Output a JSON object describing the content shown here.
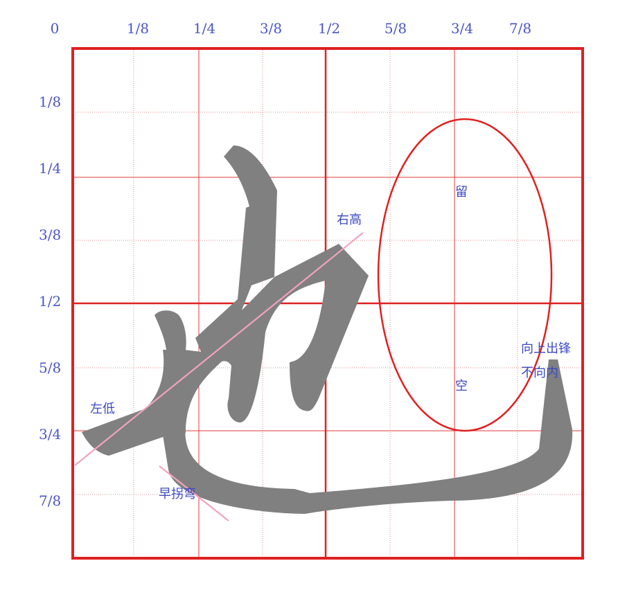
{
  "grid": {
    "top_labels": [
      "0",
      "1/8",
      "1/4",
      "3/8",
      "1/2",
      "5/8",
      "3/4",
      "7/8"
    ],
    "left_labels": [
      "1/8",
      "1/4",
      "3/8",
      "1/2",
      "5/8",
      "3/4",
      "7/8"
    ]
  },
  "annotations": {
    "right_high": "右高",
    "left_low": "左低",
    "early_turn": "早拐弯",
    "keep": "留",
    "empty": "空",
    "hook_line1": "向上出锋",
    "hook_line2": "不向内"
  },
  "colors": {
    "frame": "#e02020",
    "grid_solid": "#e23a3a",
    "grid_dotted": "#e08080",
    "glyph": "#808080",
    "guide": "#f0a0b8",
    "label": "#4a55c8"
  }
}
